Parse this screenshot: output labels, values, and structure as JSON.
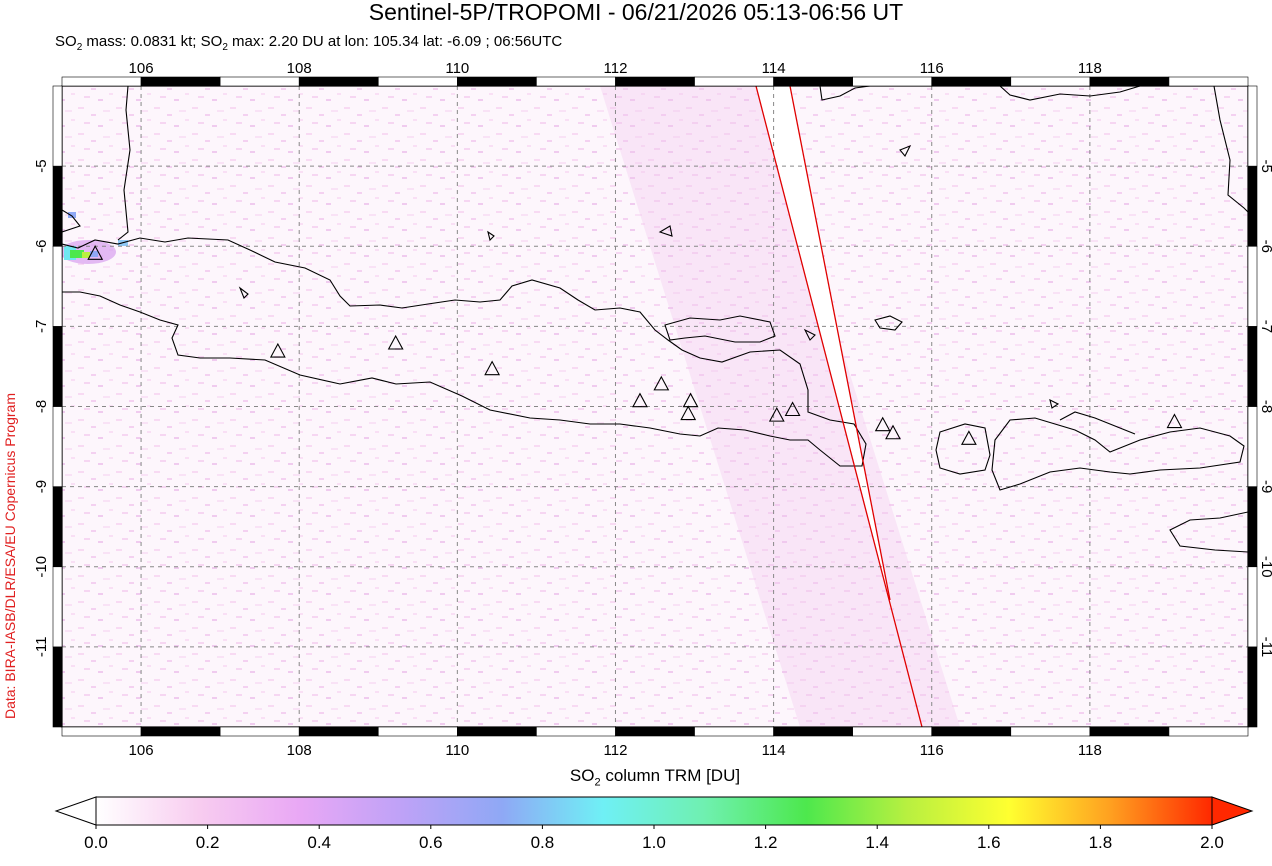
{
  "header": {
    "title": "Sentinel-5P/TROPOMI - 06/21/2026 05:13-06:56 UT",
    "subtitle_parts": [
      "SO",
      "2",
      " mass: 0.0831 kt; SO",
      "2",
      " max: 2.20 DU at lon: 105.34 lat: -6.09 ; 06:56UTC"
    ]
  },
  "credit": "Data: BIRA-IASB/DLR/ESA/EU Copernicus Program",
  "map": {
    "lon_range": [
      105,
      120
    ],
    "lat_range": [
      -12,
      -4
    ],
    "lon_ticks": [
      "106",
      "108",
      "110",
      "112",
      "114",
      "116",
      "118"
    ],
    "lat_ticks": [
      "-5",
      "-6",
      "-7",
      "-8",
      "-9",
      "-10",
      "-11"
    ],
    "grid": "dashed",
    "max_marker": {
      "lon": 105.34,
      "lat": -6.09
    },
    "volcanoes": [
      {
        "lon": 105.42,
        "lat": -6.1
      },
      {
        "lon": 107.73,
        "lat": -7.32
      },
      {
        "lon": 109.22,
        "lat": -7.22
      },
      {
        "lon": 110.44,
        "lat": -7.54
      },
      {
        "lon": 112.31,
        "lat": -7.94
      },
      {
        "lon": 112.58,
        "lat": -7.73
      },
      {
        "lon": 112.95,
        "lat": -7.94
      },
      {
        "lon": 112.92,
        "lat": -8.1
      },
      {
        "lon": 114.04,
        "lat": -8.12
      },
      {
        "lon": 114.24,
        "lat": -8.05
      },
      {
        "lon": 115.38,
        "lat": -8.24
      },
      {
        "lon": 115.51,
        "lat": -8.34
      },
      {
        "lon": 116.47,
        "lat": -8.41
      },
      {
        "lon": 119.07,
        "lat": -8.2
      }
    ]
  },
  "colorbar": {
    "label_parts": [
      "SO",
      "2",
      " column TRM [DU]"
    ],
    "range": [
      0.0,
      2.0
    ],
    "ticks": [
      "0.0",
      "0.2",
      "0.4",
      "0.6",
      "0.8",
      "1.0",
      "1.2",
      "1.4",
      "1.6",
      "1.8",
      "2.0"
    ],
    "colors": [
      "#ffffff",
      "#f8cdf0",
      "#e9a8f5",
      "#bfa2f7",
      "#8fa8f5",
      "#6ff0f5",
      "#6ff0b0",
      "#4de84d",
      "#b8f040",
      "#ffff30",
      "#ffa020",
      "#ff2800"
    ]
  },
  "colors": {
    "coastline": "#000000",
    "swath_edge": "#e00000",
    "grid": "#888888"
  }
}
